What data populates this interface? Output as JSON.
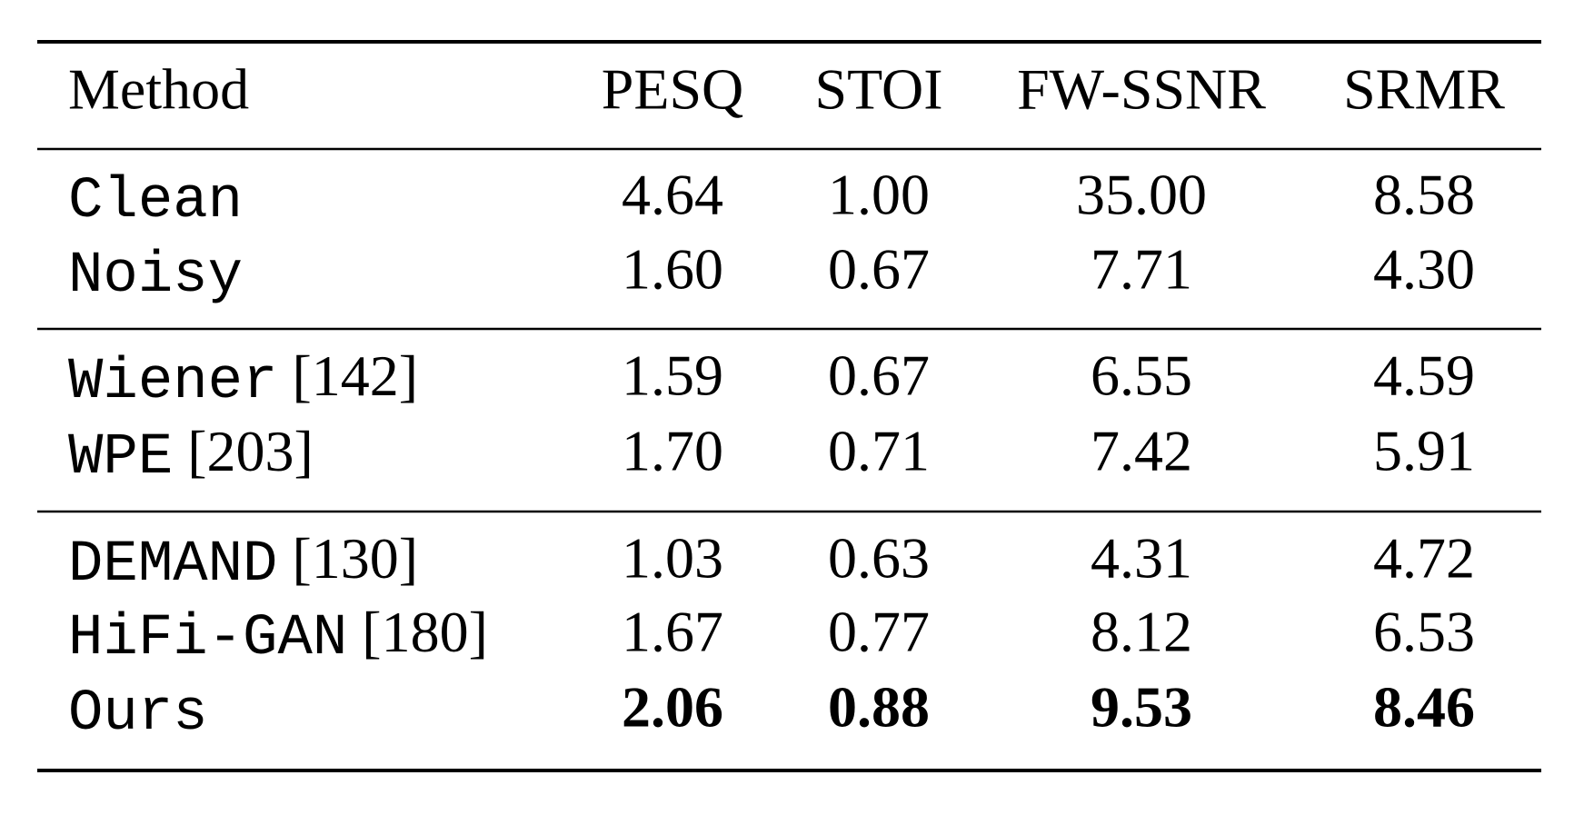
{
  "table": {
    "header": [
      "Method",
      "PESQ",
      "STOI",
      "FW-SSNR",
      "SRMR"
    ],
    "groups": [
      [
        {
          "method": {
            "name": "Clean"
          },
          "values": [
            "4.64",
            "1.00",
            "35.00",
            "8.58"
          ]
        },
        {
          "method": {
            "name": "Noisy"
          },
          "values": [
            "1.60",
            "0.67",
            "7.71",
            "4.30"
          ]
        }
      ],
      [
        {
          "method": {
            "name": "Wiener",
            "cite": "[142]"
          },
          "values": [
            "1.59",
            "0.67",
            "6.55",
            "4.59"
          ]
        },
        {
          "method": {
            "name": "WPE",
            "cite": "[203]"
          },
          "values": [
            "1.70",
            "0.71",
            "7.42",
            "5.91"
          ]
        }
      ],
      [
        {
          "method": {
            "name": "DEMAND",
            "cite": "[130]"
          },
          "values": [
            "1.03",
            "0.63",
            "4.31",
            "4.72"
          ]
        },
        {
          "method": {
            "name": "HiFi-GAN",
            "cite": "[180]"
          },
          "values": [
            "1.67",
            "0.77",
            "8.12",
            "6.53"
          ]
        },
        {
          "method": {
            "name": "Ours"
          },
          "values": [
            "2.06",
            "0.88",
            "9.53",
            "8.46"
          ],
          "bold": true
        }
      ]
    ]
  }
}
